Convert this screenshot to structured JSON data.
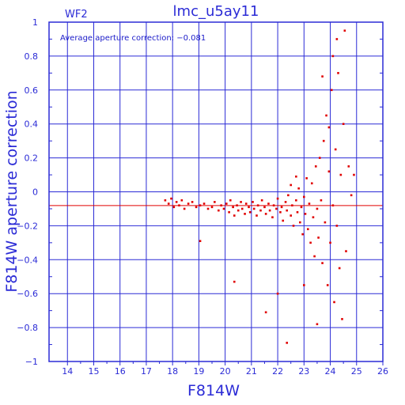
{
  "chart_data": {
    "type": "scatter",
    "title": "lmc_u5ay11",
    "panel_label": "WF2",
    "annotation": "Average aperture correction: −0.081",
    "xlabel": "F814W",
    "ylabel": "F814W aperture correction",
    "xlim": [
      13.3,
      26
    ],
    "ylim": [
      -1,
      1
    ],
    "x_ticks": [
      14,
      15,
      16,
      17,
      18,
      19,
      20,
      21,
      22,
      23,
      24,
      25,
      26
    ],
    "y_ticks": [
      -1,
      -0.8,
      -0.6,
      -0.4,
      -0.2,
      0,
      0.2,
      0.4,
      0.6,
      0.8,
      1
    ],
    "y_tick_labels": [
      "−1",
      "−0.8",
      "−0.6",
      "−0.4",
      "−0.2",
      "0",
      "0.2",
      "0.4",
      "0.6",
      "0.8",
      "1"
    ],
    "grid": true,
    "reference_line": {
      "y": -0.081,
      "color": "#e00000"
    },
    "point_color": "#e00000",
    "axis_color": "#2b2bd6",
    "points": [
      [
        17.72,
        -0.05
      ],
      [
        17.85,
        -0.07
      ],
      [
        17.95,
        -0.04
      ],
      [
        18.05,
        -0.09
      ],
      [
        18.15,
        -0.06
      ],
      [
        18.25,
        -0.08
      ],
      [
        18.35,
        -0.05
      ],
      [
        18.45,
        -0.1
      ],
      [
        18.6,
        -0.07
      ],
      [
        18.75,
        -0.06
      ],
      [
        18.9,
        -0.09
      ],
      [
        19.05,
        -0.08
      ],
      [
        19.2,
        -0.07
      ],
      [
        19.35,
        -0.1
      ],
      [
        19.5,
        -0.09
      ],
      [
        19.6,
        -0.06
      ],
      [
        19.75,
        -0.11
      ],
      [
        19.85,
        -0.08
      ],
      [
        19.95,
        -0.1
      ],
      [
        20.05,
        -0.07
      ],
      [
        20.15,
        -0.12
      ],
      [
        20.2,
        -0.05
      ],
      [
        20.3,
        -0.09
      ],
      [
        20.35,
        -0.14
      ],
      [
        20.45,
        -0.08
      ],
      [
        20.5,
        -0.11
      ],
      [
        20.6,
        -0.06
      ],
      [
        20.65,
        -0.1
      ],
      [
        20.75,
        -0.13
      ],
      [
        20.8,
        -0.07
      ],
      [
        20.9,
        -0.09
      ],
      [
        20.95,
        -0.12
      ],
      [
        21.05,
        -0.06
      ],
      [
        21.1,
        -0.1
      ],
      [
        21.2,
        -0.14
      ],
      [
        21.25,
        -0.08
      ],
      [
        21.35,
        -0.11
      ],
      [
        21.4,
        -0.05
      ],
      [
        21.5,
        -0.09
      ],
      [
        21.55,
        -0.13
      ],
      [
        21.65,
        -0.07
      ],
      [
        21.7,
        -0.11
      ],
      [
        21.8,
        -0.15
      ],
      [
        21.85,
        -0.08
      ],
      [
        21.95,
        -0.1
      ],
      [
        22.0,
        -0.04
      ],
      [
        22.1,
        -0.12
      ],
      [
        22.15,
        -0.09
      ],
      [
        22.2,
        -0.17
      ],
      [
        22.3,
        -0.06
      ],
      [
        22.35,
        -0.11
      ],
      [
        22.4,
        -0.02
      ],
      [
        22.5,
        -0.14
      ],
      [
        22.55,
        -0.08
      ],
      [
        22.6,
        -0.2
      ],
      [
        22.7,
        -0.05
      ],
      [
        22.75,
        -0.12
      ],
      [
        22.8,
        0.02
      ],
      [
        22.85,
        -0.18
      ],
      [
        22.9,
        -0.09
      ],
      [
        22.95,
        -0.25
      ],
      [
        23.0,
        -0.03
      ],
      [
        23.05,
        -0.13
      ],
      [
        23.1,
        0.08
      ],
      [
        23.15,
        -0.22
      ],
      [
        23.2,
        -0.07
      ],
      [
        23.25,
        -0.3
      ],
      [
        23.3,
        0.05
      ],
      [
        23.35,
        -0.15
      ],
      [
        23.4,
        -0.38
      ],
      [
        23.45,
        0.15
      ],
      [
        23.5,
        -0.1
      ],
      [
        23.55,
        -0.27
      ],
      [
        23.6,
        0.2
      ],
      [
        23.65,
        -0.05
      ],
      [
        23.7,
        -0.42
      ],
      [
        23.75,
        0.3
      ],
      [
        23.8,
        -0.18
      ],
      [
        23.85,
        0.45
      ],
      [
        23.9,
        -0.55
      ],
      [
        23.95,
        0.12
      ],
      [
        24.0,
        -0.3
      ],
      [
        24.05,
        0.6
      ],
      [
        24.1,
        -0.08
      ],
      [
        24.15,
        -0.65
      ],
      [
        24.2,
        0.25
      ],
      [
        24.25,
        -0.2
      ],
      [
        24.3,
        0.7
      ],
      [
        24.35,
        -0.45
      ],
      [
        24.4,
        0.1
      ],
      [
        24.45,
        -0.75
      ],
      [
        24.5,
        0.4
      ],
      [
        24.55,
        0.95
      ],
      [
        24.6,
        -0.35
      ],
      [
        24.7,
        0.15
      ],
      [
        24.8,
        -0.02
      ],
      [
        24.9,
        0.1
      ],
      [
        19.05,
        -0.29
      ],
      [
        20.35,
        -0.53
      ],
      [
        22.0,
        -0.6
      ],
      [
        22.35,
        -0.89
      ],
      [
        21.55,
        -0.71
      ],
      [
        23.0,
        -0.55
      ],
      [
        23.5,
        -0.78
      ],
      [
        23.95,
        0.38
      ],
      [
        24.1,
        0.8
      ],
      [
        23.7,
        0.68
      ],
      [
        24.25,
        0.9
      ],
      [
        22.7,
        0.09
      ],
      [
        22.5,
        0.04
      ]
    ]
  }
}
